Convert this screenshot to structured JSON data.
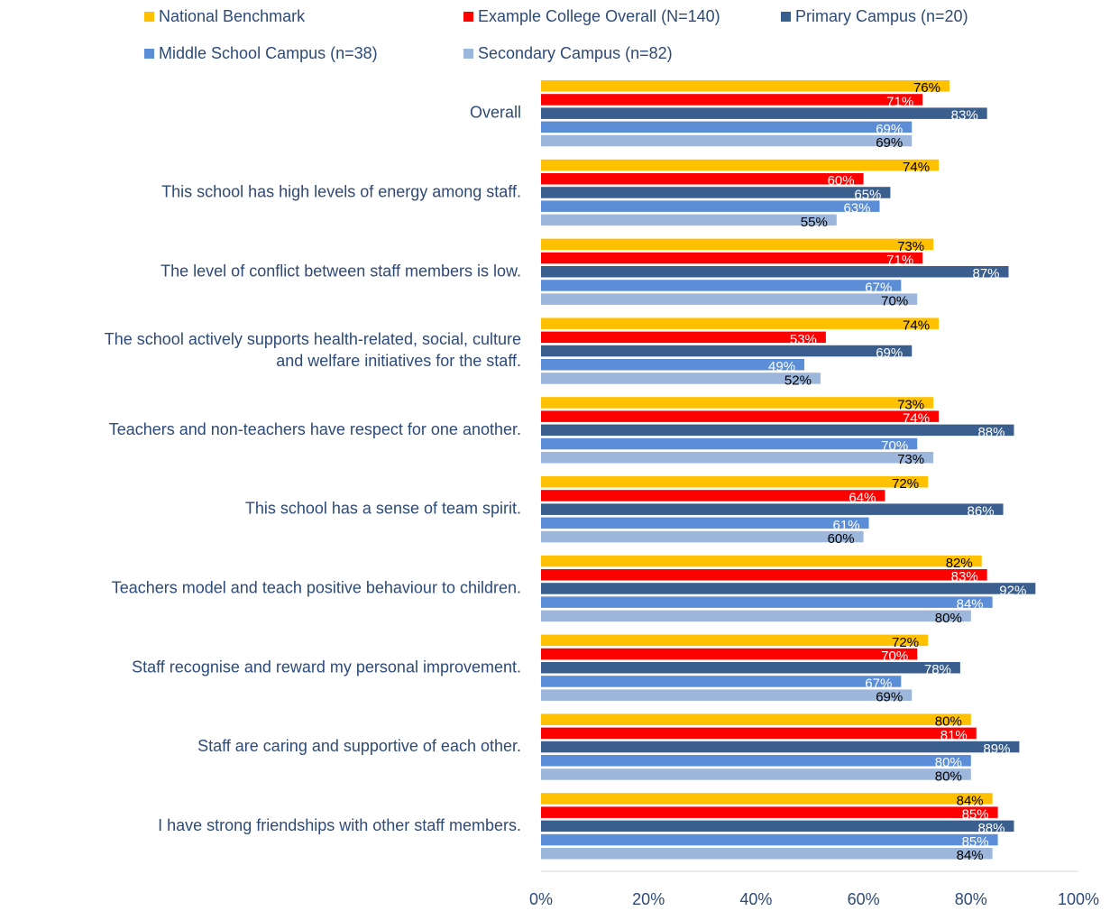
{
  "chart_data": {
    "type": "barh",
    "categories": [
      "Overall",
      "This school has high levels of energy among staff.",
      "The level of conflict between staff members is low.",
      "The school actively supports health-related, social, culture\nand welfare initiatives for the staff.",
      "Teachers and non-teachers have respect for one another.",
      "This school has a sense of team spirit.",
      "Teachers model and teach positive behaviour to children.",
      "Staff recognise and reward my personal improvement.",
      "Staff are caring and supportive of each other.",
      "I have strong friendships with other staff members."
    ],
    "series": [
      {
        "name": "National Benchmark",
        "color": "#ffc000",
        "label_color": "#000000",
        "values": [
          76,
          74,
          73,
          74,
          73,
          72,
          82,
          72,
          80,
          84
        ],
        "value_labels": [
          "76%",
          "74%",
          "73%",
          "74%",
          "73%",
          "72%",
          "82%",
          "72%",
          "80%",
          "84%"
        ]
      },
      {
        "name": "Example College Overall (N=140)",
        "color": "#ff0000",
        "label_color": "#ffffff",
        "values": [
          71,
          60,
          71,
          53,
          74,
          64,
          83,
          70,
          81,
          85
        ],
        "value_labels": [
          "71%",
          "60%",
          "71%",
          "53%",
          "74%",
          "64%",
          "83%",
          "70%",
          "81%",
          "85%"
        ]
      },
      {
        "name": "Primary Campus (n=20)",
        "color": "#3a5f8f",
        "label_color": "#ffffff",
        "values": [
          83,
          65,
          87,
          69,
          88,
          86,
          92,
          78,
          89,
          88
        ],
        "value_labels": [
          "83%",
          "65%",
          "87%",
          "69%",
          "88%",
          "86%",
          "92%",
          "78%",
          "89%",
          "88%"
        ]
      },
      {
        "name": "Middle School Campus (n=38)",
        "color": "#5b8ed6",
        "label_color": "#ffffff",
        "values": [
          69,
          63,
          67,
          49,
          70,
          61,
          84,
          67,
          80,
          85
        ],
        "value_labels": [
          "69%",
          "63%",
          "67%",
          "49%",
          "70%",
          "61%",
          "84%",
          "67%",
          "80%",
          "85%"
        ]
      },
      {
        "name": "Secondary Campus (n=82)",
        "color": "#9db6db",
        "label_color": "#000000",
        "values": [
          69,
          55,
          70,
          52,
          73,
          60,
          80,
          69,
          80,
          84
        ],
        "value_labels": [
          "69%",
          "55%",
          "70%",
          "52%",
          "73%",
          "60%",
          "80%",
          "69%",
          "80%",
          "84%"
        ]
      }
    ],
    "xlim": [
      0,
      100
    ],
    "xticks": [
      {
        "value": 0,
        "label": "0%"
      },
      {
        "value": 20,
        "label": "20%"
      },
      {
        "value": 40,
        "label": "40%"
      },
      {
        "value": 60,
        "label": "60%"
      },
      {
        "value": 80,
        "label": "80%"
      },
      {
        "value": 100,
        "label": "100%"
      }
    ],
    "grid": false,
    "legend": "top"
  }
}
